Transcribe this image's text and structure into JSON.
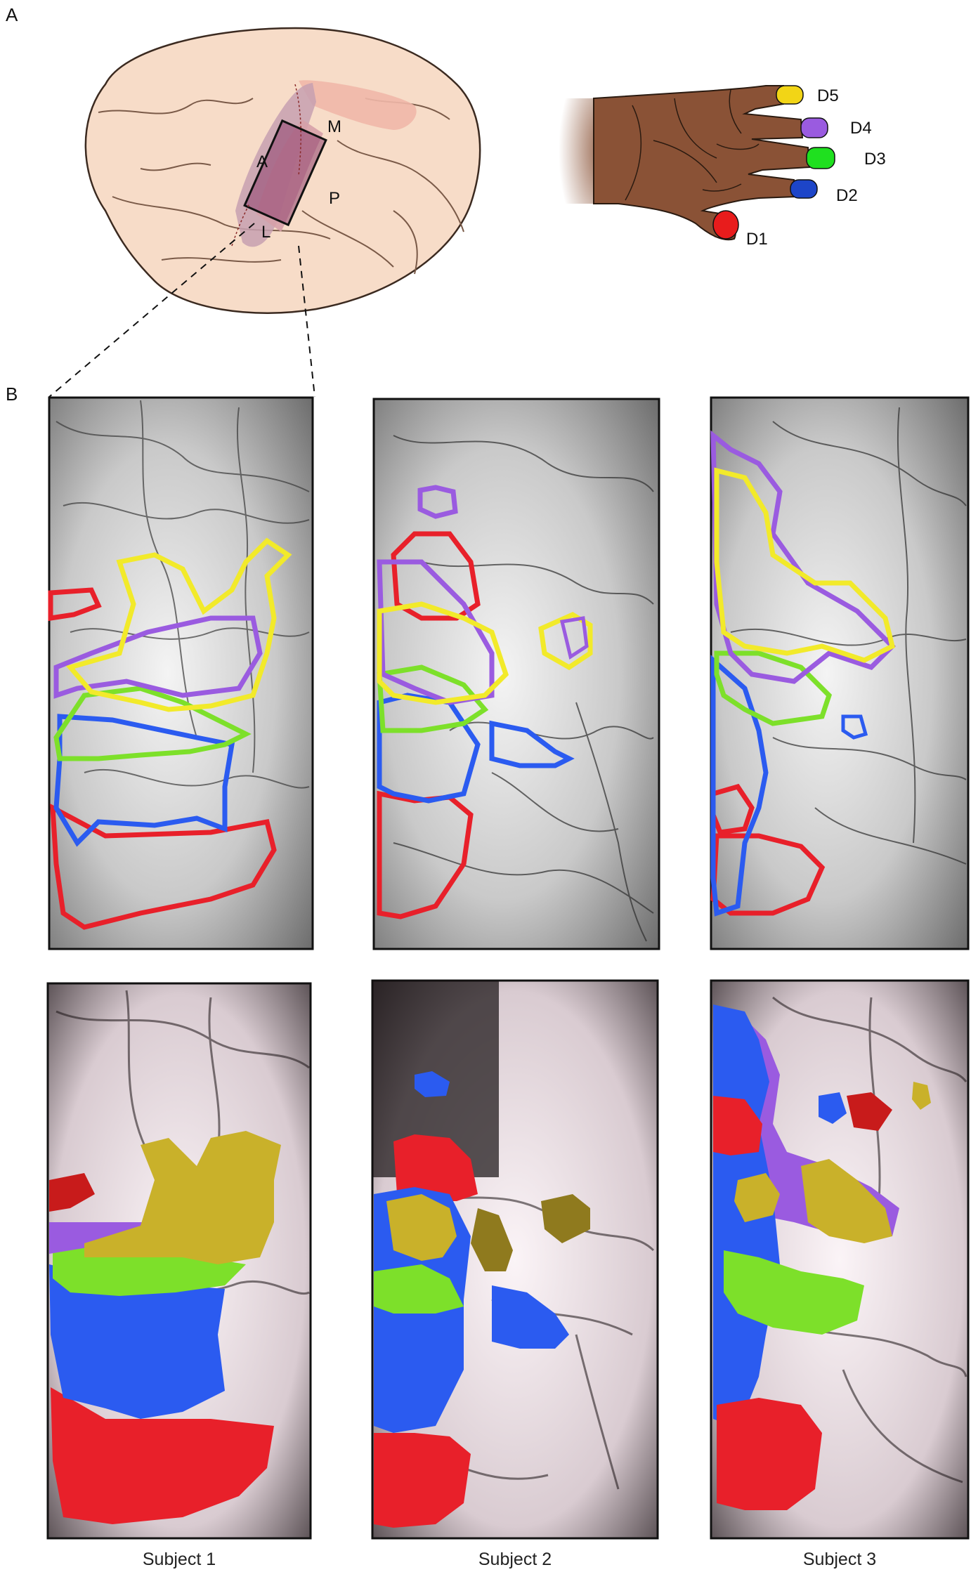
{
  "panels": {
    "a": {
      "letter": "A"
    },
    "b": {
      "letter": "B"
    }
  },
  "brain": {
    "orientation_labels": {
      "anterior": "A",
      "medial": "M",
      "posterior": "P",
      "lateral": "L"
    }
  },
  "hand": {
    "digits": [
      {
        "label": "D5",
        "color": "#f2d516"
      },
      {
        "label": "D4",
        "color": "#9a5be0"
      },
      {
        "label": "D3",
        "color": "#1fe01f"
      },
      {
        "label": "D2",
        "color": "#1d45c8"
      },
      {
        "label": "D1",
        "color": "#e81c1c"
      }
    ]
  },
  "subjects": [
    {
      "label": "Subject 1"
    },
    {
      "label": "Subject 2"
    },
    {
      "label": "Subject 3"
    }
  ],
  "colors": {
    "d1_red": "#e8202a",
    "d2_blue": "#2b5bf0",
    "d3_green": "#7de02a",
    "d4_purple": "#9a5be0",
    "d5_yellow": "#f2ea2a"
  }
}
